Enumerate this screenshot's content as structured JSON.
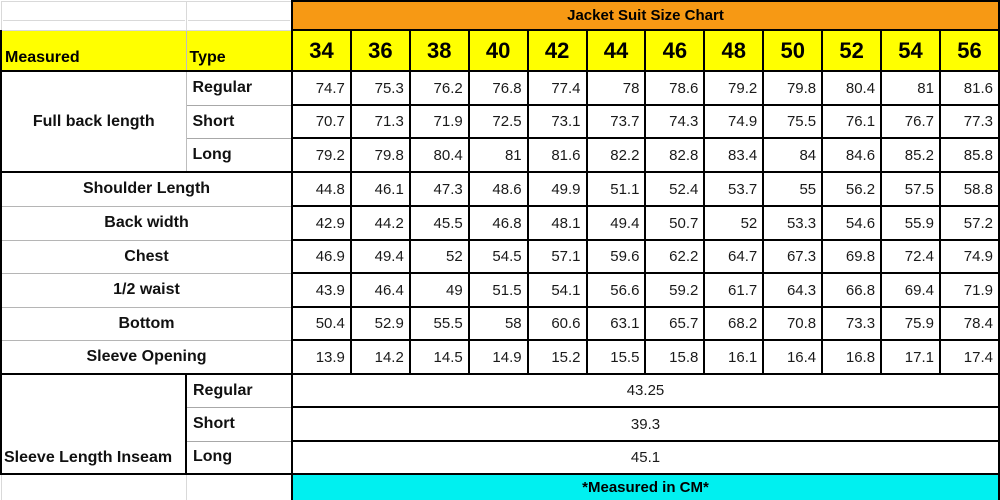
{
  "chart_data": {
    "type": "table",
    "title": "Jacket Suit Size Chart",
    "footer": "*Measured in CM*",
    "header": {
      "measured_label": "Measured",
      "type_label": "Type",
      "sizes": [
        34,
        36,
        38,
        40,
        42,
        44,
        46,
        48,
        50,
        52,
        54,
        56
      ]
    },
    "rows": [
      {
        "label": "Full back length",
        "types": [
          {
            "type": "Regular",
            "values": [
              74.7,
              75.3,
              76.2,
              76.8,
              77.4,
              78,
              78.6,
              79.2,
              79.8,
              80.4,
              81,
              81.6
            ]
          },
          {
            "type": "Short",
            "values": [
              70.7,
              71.3,
              71.9,
              72.5,
              73.1,
              73.7,
              74.3,
              74.9,
              75.5,
              76.1,
              76.7,
              77.3
            ]
          },
          {
            "type": "Long",
            "values": [
              79.2,
              79.8,
              80.4,
              81,
              81.6,
              82.2,
              82.8,
              83.4,
              84,
              84.6,
              85.2,
              85.8
            ]
          }
        ]
      },
      {
        "label": "Shoulder Length",
        "values": [
          44.8,
          46.1,
          47.3,
          48.6,
          49.9,
          51.1,
          52.4,
          53.7,
          55,
          56.2,
          57.5,
          58.8
        ]
      },
      {
        "label": "Back width",
        "values": [
          42.9,
          44.2,
          45.5,
          46.8,
          48.1,
          49.4,
          50.7,
          52,
          53.3,
          54.6,
          55.9,
          57.2
        ]
      },
      {
        "label": "Chest",
        "values": [
          46.9,
          49.4,
          52,
          54.5,
          57.1,
          59.6,
          62.2,
          64.7,
          67.3,
          69.8,
          72.4,
          74.9
        ]
      },
      {
        "label": "1/2 waist",
        "values": [
          43.9,
          46.4,
          49,
          51.5,
          54.1,
          56.6,
          59.2,
          61.7,
          64.3,
          66.8,
          69.4,
          71.9
        ]
      },
      {
        "label": "Bottom",
        "values": [
          50.4,
          52.9,
          55.5,
          58,
          60.6,
          63.1,
          65.7,
          68.2,
          70.8,
          73.3,
          75.9,
          78.4
        ]
      },
      {
        "label": "Sleeve Opening",
        "values": [
          13.9,
          14.2,
          14.5,
          14.9,
          15.2,
          15.5,
          15.8,
          16.1,
          16.4,
          16.8,
          17.1,
          17.4
        ]
      },
      {
        "label": "Sleeve Length Inseam",
        "types": [
          {
            "type": "Regular",
            "value": 43.25
          },
          {
            "type": "Short",
            "value": 39.3
          },
          {
            "type": "Long",
            "value": 45.1
          }
        ]
      }
    ],
    "colors": {
      "title_bg": "#F79914",
      "header_bg": "#FFFF00",
      "footer_bg": "#00F0F0",
      "grid": "#000000"
    }
  }
}
